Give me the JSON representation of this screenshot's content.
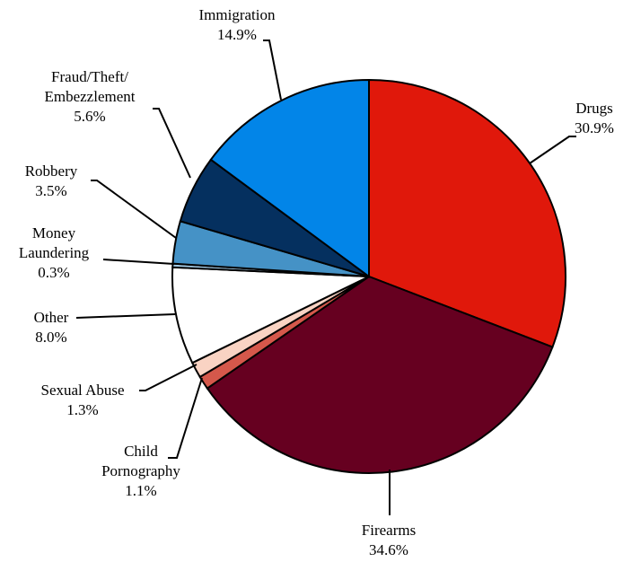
{
  "chart_data": {
    "type": "pie",
    "title": "",
    "start_angle_deg": 0,
    "direction": "clockwise",
    "slices": [
      {
        "name": "Drugs",
        "label_lines": [
          "Drugs"
        ],
        "value": 30.9,
        "value_label": "30.9%",
        "color": "#e0180b"
      },
      {
        "name": "Firearms",
        "label_lines": [
          "Firearms"
        ],
        "value": 34.6,
        "value_label": "34.6%",
        "color": "#660020"
      },
      {
        "name": "Child Pornography",
        "label_lines": [
          "Child",
          "Pornography"
        ],
        "value": 1.1,
        "value_label": "1.1%",
        "color": "#d5584b"
      },
      {
        "name": "Sexual Abuse",
        "label_lines": [
          "Sexual Abuse"
        ],
        "value": 1.3,
        "value_label": "1.3%",
        "color": "#f9d3c3"
      },
      {
        "name": "Other",
        "label_lines": [
          "Other"
        ],
        "value": 8.0,
        "value_label": "8.0%",
        "color": "#ffffff"
      },
      {
        "name": "Money Laundering",
        "label_lines": [
          "Money",
          "Laundering"
        ],
        "value": 0.3,
        "value_label": "0.3%",
        "color": "#a5cce6"
      },
      {
        "name": "Robbery",
        "label_lines": [
          "Robbery"
        ],
        "value": 3.5,
        "value_label": "3.5%",
        "color": "#4592c6"
      },
      {
        "name": "Fraud/Theft/Embezzlement",
        "label_lines": [
          "Fraud/Theft/",
          "Embezzlement"
        ],
        "value": 5.6,
        "value_label": "5.6%",
        "color": "#05305f"
      },
      {
        "name": "Immigration",
        "label_lines": [
          "Immigration"
        ],
        "value": 14.9,
        "value_label": "14.9%",
        "color": "#0285e8"
      }
    ]
  }
}
